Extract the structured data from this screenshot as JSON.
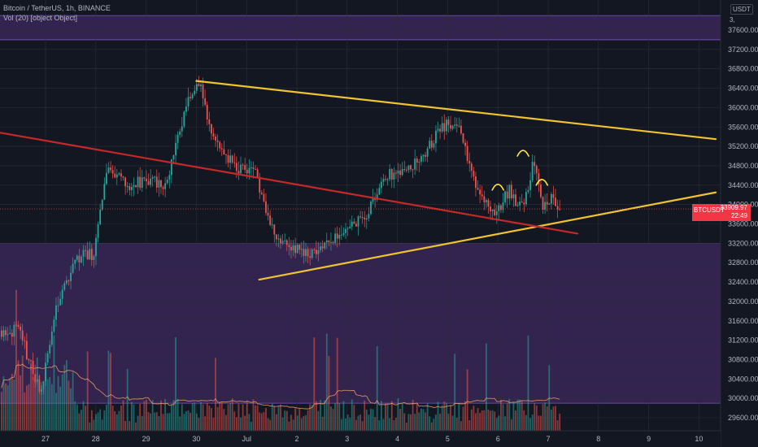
{
  "legend": {
    "title": "Bitcoin / TetherUS, 1h, BINANCE",
    "volume": "Vol (20) [object Object]"
  },
  "price_scale": {
    "currency": "USDT",
    "unit_hint": "3,",
    "ticks": [
      "37600.00",
      "37200.00",
      "36800.00",
      "36400.00",
      "36000.00",
      "35600.00",
      "35200.00",
      "34800.00",
      "34400.00",
      "34000.00",
      "33600.00",
      "33200.00",
      "32800.00",
      "32400.00",
      "32000.00",
      "31600.00",
      "31200.00",
      "30800.00",
      "30400.00",
      "30000.00",
      "29600.00"
    ],
    "last_price": "33909.97",
    "countdown": "22:49"
  },
  "time_scale": {
    "ticks": [
      "27",
      "28",
      "29",
      "30",
      "Jul",
      "2",
      "3",
      "4",
      "5",
      "6",
      "7",
      "8",
      "9",
      "10"
    ]
  },
  "symbol_tag": "BTCUSDT",
  "colors": {
    "background": "#131722",
    "zone": "#3d2a5e",
    "up": "#26a69a",
    "down": "#ef5350",
    "trendline": "#f0c330",
    "support": "#c62828",
    "annotation": "#ffeb3b",
    "volume_ma": "#f6a26a"
  },
  "chart_data": {
    "type": "candlestick",
    "symbol": "BTCUSDT",
    "interval": "1h",
    "exchange": "BINANCE",
    "x_range": [
      "2021-06-26",
      "2021-07-10"
    ],
    "y_range": [
      29400,
      37900
    ],
    "price_path": [
      [
        "2021-06-26 12:00",
        31400
      ],
      [
        "2021-06-26 22:00",
        30100
      ],
      [
        "2021-06-27 06:00",
        31900
      ],
      [
        "2021-06-27 16:00",
        32900
      ],
      [
        "2021-06-28 00:00",
        33000
      ],
      [
        "2021-06-28 06:00",
        34700
      ],
      [
        "2021-06-28 16:00",
        34400
      ],
      [
        "2021-06-29 00:00",
        34500
      ],
      [
        "2021-06-29 10:00",
        34400
      ],
      [
        "2021-06-29 20:00",
        36100
      ],
      [
        "2021-06-30 02:00",
        36500
      ],
      [
        "2021-06-30 08:00",
        35500
      ],
      [
        "2021-06-30 20:00",
        34700
      ],
      [
        "2021-07-01 04:00",
        34800
      ],
      [
        "2021-07-01 12:00",
        33500
      ],
      [
        "2021-07-01 20:00",
        33200
      ],
      [
        "2021-07-02 06:00",
        33000
      ],
      [
        "2021-07-02 16:00",
        33200
      ],
      [
        "2021-07-03 00:00",
        33500
      ],
      [
        "2021-07-03 10:00",
        33800
      ],
      [
        "2021-07-03 18:00",
        34600
      ],
      [
        "2021-07-04 06:00",
        34700
      ],
      [
        "2021-07-04 16:00",
        35200
      ],
      [
        "2021-07-04 22:00",
        35600
      ],
      [
        "2021-07-05 06:00",
        35700
      ],
      [
        "2021-07-05 12:00",
        34600
      ],
      [
        "2021-07-05 20:00",
        34000
      ],
      [
        "2021-07-06 00:00",
        33800
      ],
      [
        "2021-07-06 06:00",
        34300
      ],
      [
        "2021-07-06 12:00",
        33900
      ],
      [
        "2021-07-06 18:00",
        34900
      ],
      [
        "2021-07-06 22:00",
        33900
      ],
      [
        "2021-07-07 02:00",
        34200
      ],
      [
        "2021-07-07 06:00",
        33910
      ]
    ],
    "zones": [
      {
        "from": 37400,
        "to": 37900
      },
      {
        "from": 29900,
        "to": 33200
      }
    ],
    "trendlines": [
      {
        "color": "yellow",
        "from": [
          "2021-06-30 00:00",
          36550
        ],
        "to": [
          "2021-07-10 08:00",
          35350
        ]
      },
      {
        "color": "yellow",
        "from": [
          "2021-07-01 06:00",
          32450
        ],
        "to": [
          "2021-07-10 08:00",
          34250
        ]
      },
      {
        "color": "red",
        "from": [
          "2021-06-26 00:00",
          35500
        ],
        "to": [
          "2021-07-07 14:00",
          33400
        ]
      }
    ],
    "annotations": [
      {
        "type": "arc",
        "at": [
          "2021-07-06 00:00",
          34400
        ]
      },
      {
        "type": "arc",
        "at": [
          "2021-07-06 12:00",
          35100
        ]
      },
      {
        "type": "arc",
        "at": [
          "2021-07-06 21:00",
          34500
        ]
      }
    ],
    "volume": {
      "label": "Vol (20)",
      "has_ma": true
    }
  }
}
